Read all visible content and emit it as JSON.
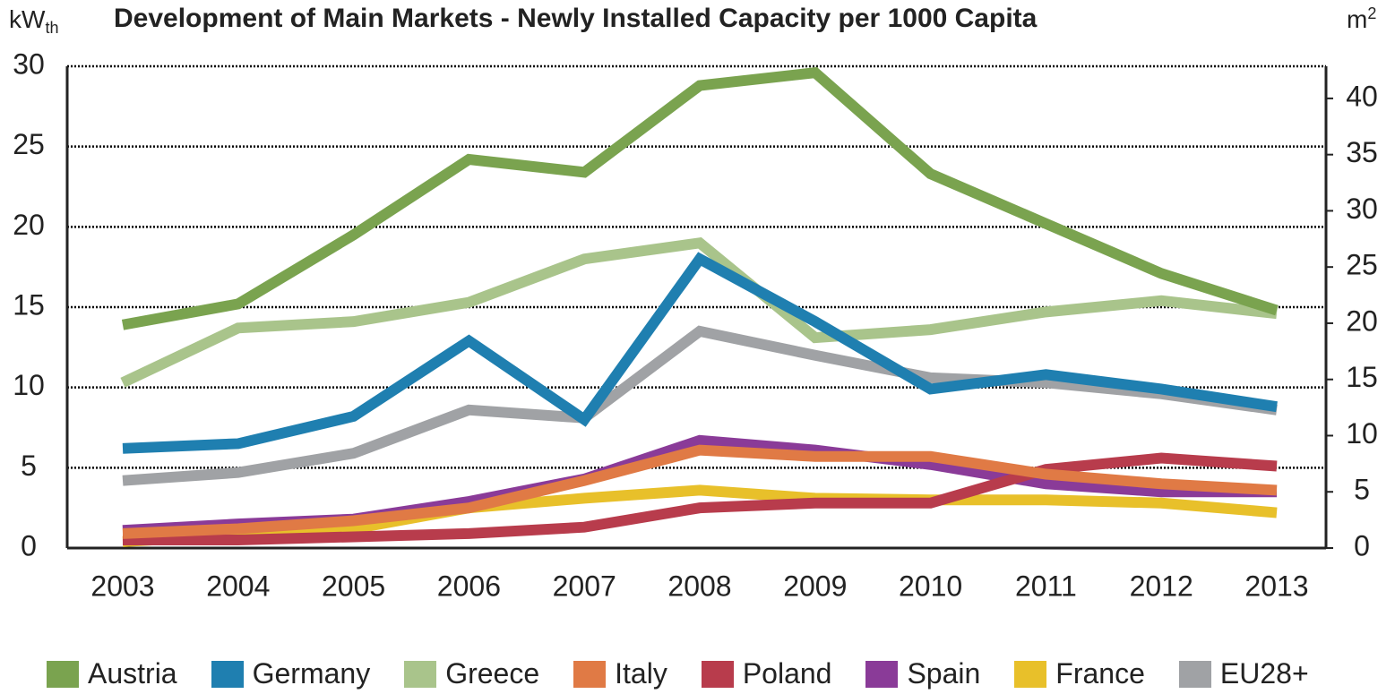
{
  "chart_data": {
    "type": "line",
    "title": "Development of Main Markets - Newly Installed Capacity per 1000 Capita",
    "ylabel": "kW",
    "ylabel_sub": "th",
    "y2label": "m",
    "y2label_sup": "2",
    "categories": [
      "2003",
      "2004",
      "2005",
      "2006",
      "2007",
      "2008",
      "2009",
      "2010",
      "2011",
      "2012",
      "2013"
    ],
    "ylim": [
      0,
      30
    ],
    "yticks": [
      0,
      5,
      10,
      15,
      20,
      25,
      30
    ],
    "y2lim": [
      0,
      42.86
    ],
    "y2ticks": [
      0,
      5,
      10,
      15,
      20,
      25,
      30,
      35,
      40
    ],
    "grid": true,
    "legend": "bottom",
    "series": [
      {
        "name": "Austria",
        "color": "#7aa34f",
        "values": [
          13.9,
          15.2,
          19.5,
          24.2,
          23.4,
          28.8,
          29.6,
          23.3,
          20.2,
          17.1,
          14.8
        ]
      },
      {
        "name": "Germany",
        "color": "#1f7fb0",
        "values": [
          6.2,
          6.5,
          8.2,
          12.9,
          8.0,
          18.0,
          14.1,
          9.9,
          10.8,
          9.9,
          8.8
        ]
      },
      {
        "name": "Greece",
        "color": "#a9c48b",
        "values": [
          10.3,
          13.7,
          14.1,
          15.3,
          18.0,
          19.0,
          13.1,
          13.6,
          14.7,
          15.4,
          14.6
        ]
      },
      {
        "name": "Italy",
        "color": "#e07a45",
        "values": [
          0.9,
          1.2,
          1.7,
          2.5,
          4.2,
          6.1,
          5.7,
          5.7,
          4.6,
          4.0,
          3.6
        ]
      },
      {
        "name": "Poland",
        "color": "#b83c4c",
        "values": [
          0.5,
          0.5,
          0.7,
          0.9,
          1.3,
          2.5,
          2.8,
          2.8,
          4.9,
          5.6,
          5.1
        ]
      },
      {
        "name": "Spain",
        "color": "#8a3b98",
        "values": [
          1.1,
          1.5,
          1.8,
          2.9,
          4.3,
          6.7,
          6.1,
          5.2,
          4.0,
          3.5,
          3.5
        ]
      },
      {
        "name": "France",
        "color": "#e8c02a",
        "values": [
          0.4,
          0.8,
          1.2,
          2.5,
          3.1,
          3.6,
          3.1,
          3.0,
          3.0,
          2.8,
          2.2
        ]
      },
      {
        "name": "EU28+",
        "color": "#a0a2a5",
        "values": [
          4.2,
          4.7,
          5.9,
          8.6,
          8.1,
          13.5,
          12.0,
          10.6,
          10.3,
          9.6,
          8.6
        ]
      }
    ]
  }
}
